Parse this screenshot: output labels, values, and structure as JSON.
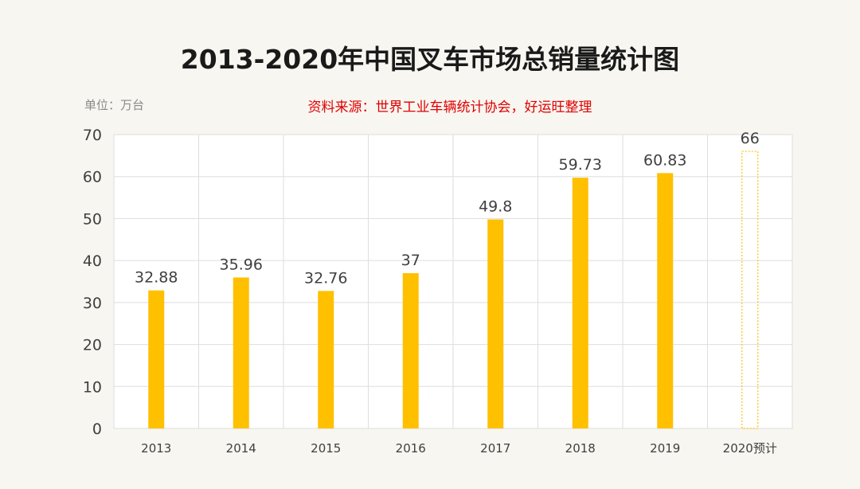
{
  "title": "2013-2020年中国叉车市场总销量统计图",
  "unit_label": "单位：万台",
  "source_label": "资料来源：世界工业车辆统计协会，好运旺整理",
  "colors": {
    "bar": "#ffc000",
    "forecast_outline": "#ffc000",
    "grid": "#dedede",
    "text": "#404040"
  },
  "chart_data": {
    "type": "bar",
    "categories": [
      "2013",
      "2014",
      "2015",
      "2016",
      "2017",
      "2018",
      "2019",
      "2020预计"
    ],
    "values": [
      32.88,
      35.96,
      32.76,
      37,
      49.8,
      59.73,
      60.83,
      66
    ],
    "value_labels": [
      "32.88",
      "35.96",
      "32.76",
      "37",
      "49.8",
      "59.73",
      "60.83",
      "66"
    ],
    "forecast": [
      false,
      false,
      false,
      false,
      false,
      false,
      false,
      true
    ],
    "ylim": [
      0,
      70
    ],
    "yticks": [
      0,
      10,
      20,
      30,
      40,
      50,
      60,
      70
    ],
    "grid": true,
    "title": "2013-2020年中国叉车市场总销量统计图",
    "xlabel": "",
    "ylabel": ""
  }
}
